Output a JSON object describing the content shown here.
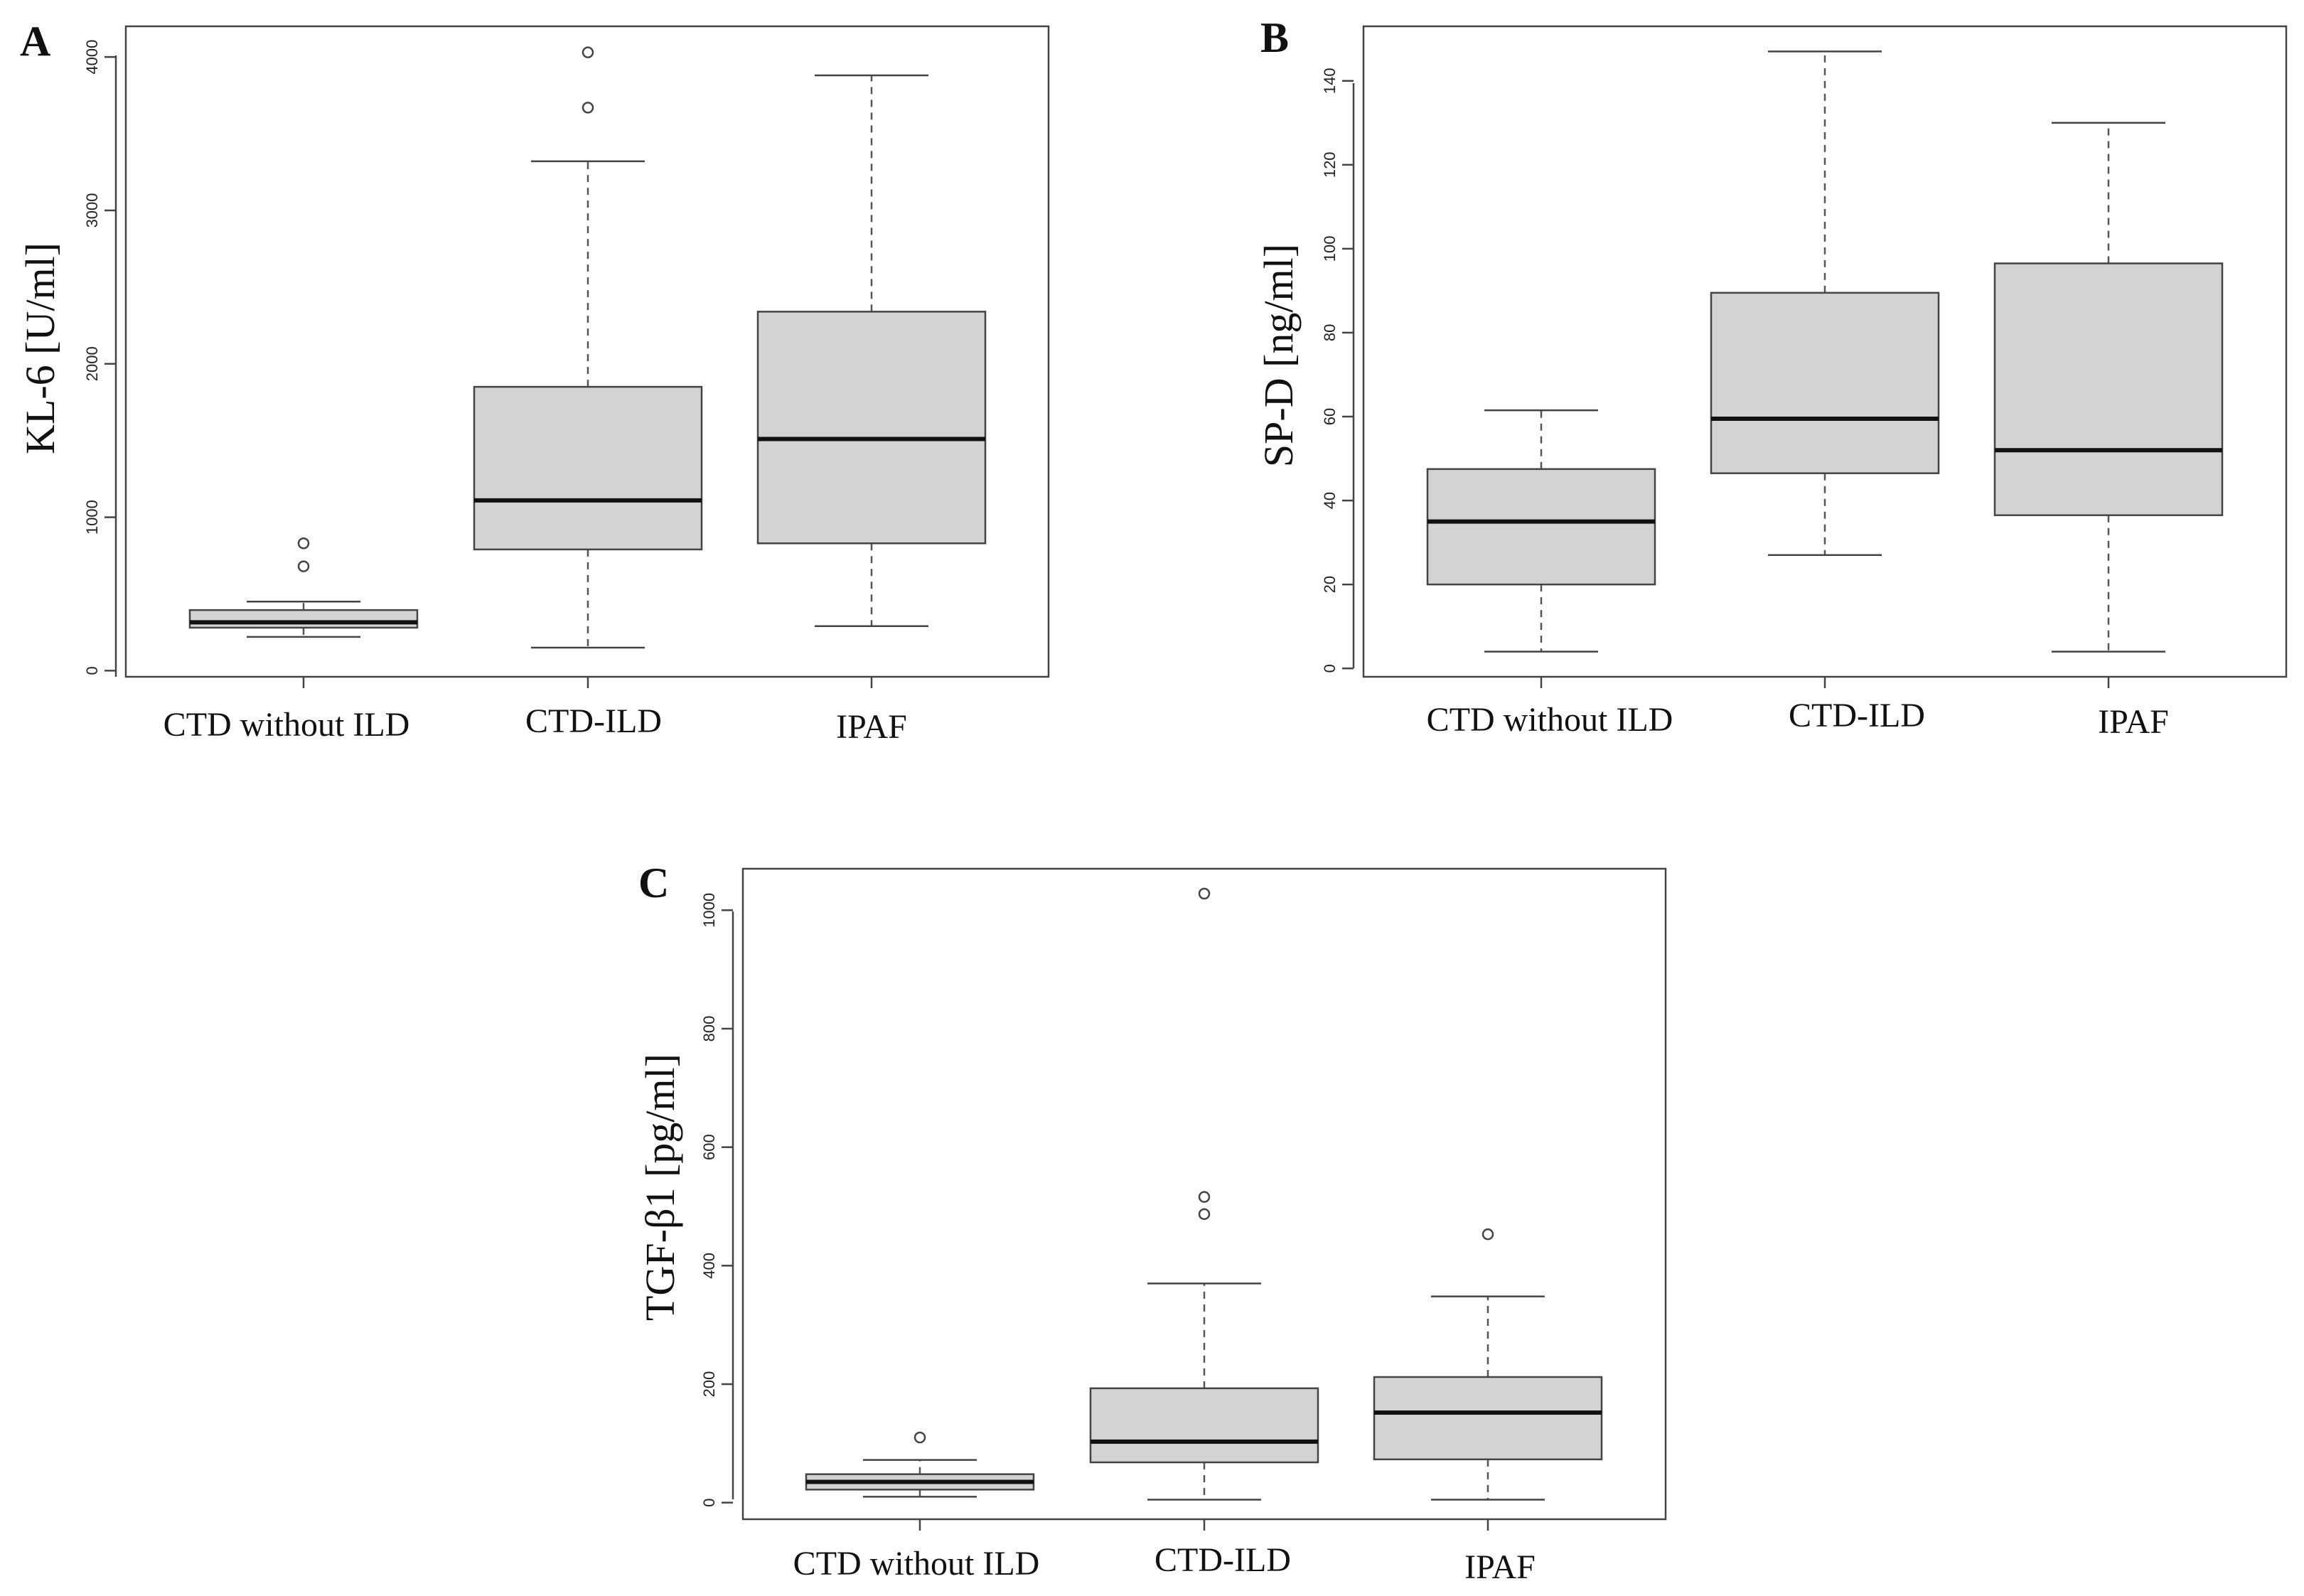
{
  "panel_letters": [
    "A",
    "B",
    "C"
  ],
  "chart_data": [
    {
      "type": "box",
      "panel": "A",
      "ylabel": "KL-6 [U/ml]",
      "xlabel": "",
      "ylim": [
        -40,
        4200
      ],
      "yticks": [
        0,
        1000,
        2000,
        3000,
        4000
      ],
      "categories": [
        "CTD without ILD",
        "CTD-ILD",
        "IPAF"
      ],
      "boxes": [
        {
          "category": "CTD without ILD",
          "min": 220,
          "q1": 280,
          "median": 315,
          "q3": 395,
          "max": 450,
          "outliers": [
            680,
            830
          ]
        },
        {
          "category": "CTD-ILD",
          "min": 150,
          "q1": 790,
          "median": 1110,
          "q3": 1850,
          "max": 3320,
          "outliers": [
            3670,
            4030
          ]
        },
        {
          "category": "IPAF",
          "min": 290,
          "q1": 830,
          "median": 1510,
          "q3": 2340,
          "max": 3880,
          "outliers": []
        }
      ]
    },
    {
      "type": "box",
      "panel": "B",
      "ylabel": "SP-D [ng/ml]",
      "xlabel": "",
      "ylim": [
        -2,
        153
      ],
      "yticks": [
        0,
        20,
        40,
        60,
        80,
        100,
        120,
        140
      ],
      "categories": [
        "CTD without ILD",
        "CTD-ILD",
        "IPAF"
      ],
      "boxes": [
        {
          "category": "CTD without ILD",
          "min": 4,
          "q1": 20,
          "median": 35,
          "q3": 47.5,
          "max": 61.5,
          "outliers": []
        },
        {
          "category": "CTD-ILD",
          "min": 27,
          "q1": 46.5,
          "median": 59.5,
          "q3": 89.5,
          "max": 147,
          "outliers": []
        },
        {
          "category": "IPAF",
          "min": 4,
          "q1": 36.5,
          "median": 52,
          "q3": 96.5,
          "max": 130,
          "outliers": []
        }
      ]
    },
    {
      "type": "box",
      "panel": "C",
      "ylabel": "TGF-β1 [pg/ml]",
      "xlabel": "",
      "ylim": [
        -28,
        1070
      ],
      "yticks": [
        0,
        200,
        400,
        600,
        800,
        1000
      ],
      "categories": [
        "CTD without ILD",
        "CTD-ILD",
        "IPAF"
      ],
      "boxes": [
        {
          "category": "CTD without ILD",
          "min": 10,
          "q1": 22,
          "median": 35,
          "q3": 48,
          "max": 72,
          "outliers": [
            110
          ]
        },
        {
          "category": "CTD-ILD",
          "min": 5,
          "q1": 68,
          "median": 103,
          "q3": 193,
          "max": 370,
          "outliers": [
            487,
            516,
            1028
          ]
        },
        {
          "category": "IPAF",
          "min": 5,
          "q1": 73,
          "median": 152,
          "q3": 212,
          "max": 348,
          "outliers": [
            453
          ]
        }
      ]
    }
  ]
}
